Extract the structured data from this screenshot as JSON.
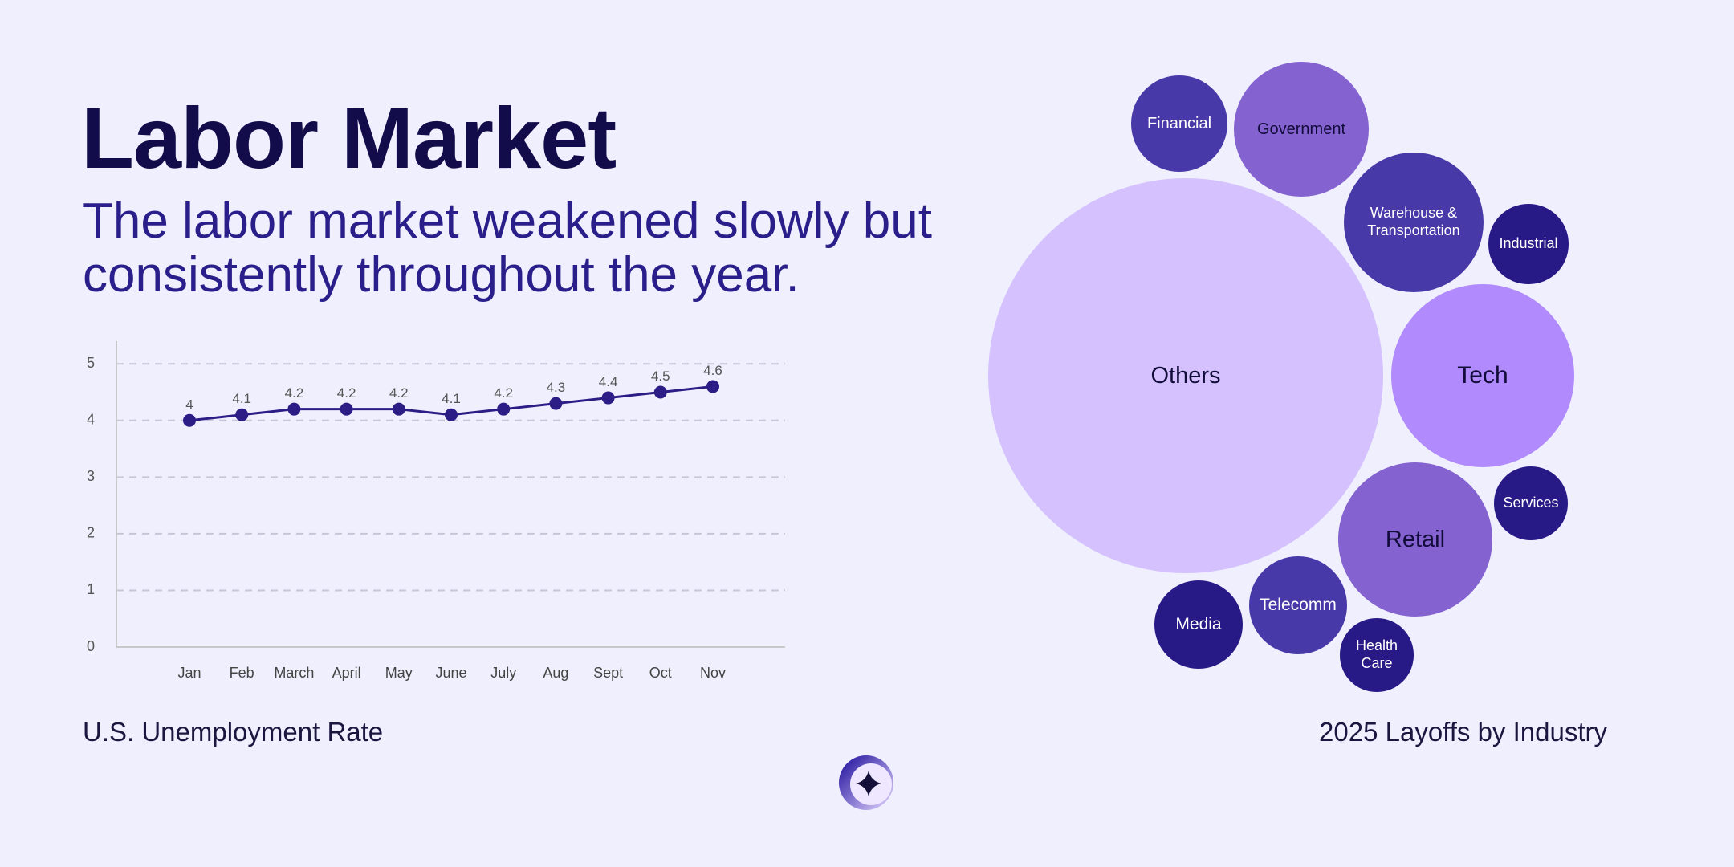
{
  "title": "Labor Market",
  "subtitle": "The labor market weakened slowly but consistently throughout the year.",
  "chart_data": [
    {
      "type": "line",
      "title": "U.S. Unemployment Rate",
      "categories": [
        "Jan",
        "Feb",
        "March",
        "April",
        "May",
        "June",
        "July",
        "Aug",
        "Sept",
        "Oct",
        "Nov"
      ],
      "values": [
        4,
        4.1,
        4.2,
        4.2,
        4.2,
        4.1,
        4.2,
        4.3,
        4.4,
        4.5,
        4.6
      ],
      "color": "#2b1d85",
      "ylim": [
        0,
        5.4
      ],
      "yticks": [
        0,
        1,
        2,
        3,
        4,
        5
      ],
      "grid": true
    },
    {
      "type": "bubble",
      "title": "2025 Layoffs by Industry",
      "categories": [
        "Financial",
        "Government",
        "Warehouse & Transportation",
        "Industrial",
        "Others",
        "Tech",
        "Services",
        "Retail",
        "Telecomm",
        "Media",
        "Health Care"
      ],
      "values": [
        19,
        37,
        40,
        13,
        320,
        69,
        11,
        49,
        20,
        16,
        11
      ],
      "colors": [
        "#473aa8",
        "#8462cf",
        "#473aa8",
        "#271a86",
        "#d4c1fd",
        "#b18bfd",
        "#271a86",
        "#8462cf",
        "#473aa8",
        "#271a86",
        "#271a86"
      ]
    }
  ]
}
